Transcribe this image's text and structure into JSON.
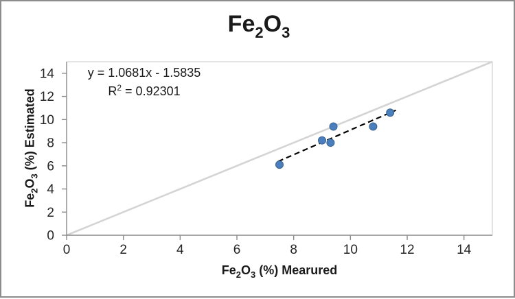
{
  "frame": {
    "background": "#ffffff",
    "border_color": "#8c8c8c"
  },
  "chart_data": {
    "type": "scatter",
    "title_text": "Fe₂O₃",
    "title_parts": [
      "Fe",
      "2",
      "O",
      "3"
    ],
    "x_axis": {
      "label_text": "Fe₂O₃ (%) Mearured",
      "label_parts": [
        "Fe",
        "2",
        "O",
        "3",
        " (%) Mearured"
      ],
      "ticks": [
        0,
        2,
        4,
        6,
        8,
        10,
        12,
        14
      ],
      "range": [
        0,
        15
      ]
    },
    "y_axis": {
      "label_text": "Fe₂O₃ (%) Estimated",
      "label_parts": [
        "Fe",
        "2",
        "O",
        "3",
        " (%) Estimated"
      ],
      "ticks": [
        0,
        2,
        4,
        6,
        8,
        10,
        12,
        14
      ],
      "range": [
        0,
        15
      ]
    },
    "equation": {
      "line1": "y = 1.0681x - 1.5835",
      "r2_base": "R",
      "r2_sup": "2",
      "r2_rest": " = 0.92301"
    },
    "points": [
      [
        7.5,
        6.1
      ],
      [
        9.0,
        8.2
      ],
      [
        9.3,
        8.0
      ],
      [
        9.4,
        9.4
      ],
      [
        10.8,
        9.4
      ],
      [
        11.4,
        10.6
      ]
    ],
    "trendline": {
      "slope": 1.0681,
      "intercept": -1.5835,
      "x_start": 7.45,
      "x_end": 11.6,
      "style": "dashed",
      "color": "#000000"
    },
    "identity_line": {
      "from": [
        0,
        0
      ],
      "to": [
        15,
        15
      ],
      "color": "#d4d4d4"
    },
    "grid": "off",
    "legend": "none",
    "colors": {
      "marker_fill": "#4a7ebc",
      "marker_stroke": "#3a648f",
      "axis": "#8a8a8a",
      "plot_border": "#c9c9c9",
      "tick_text": "#262626",
      "text": "#1a1a1a"
    },
    "marker_radius": 5.5
  }
}
